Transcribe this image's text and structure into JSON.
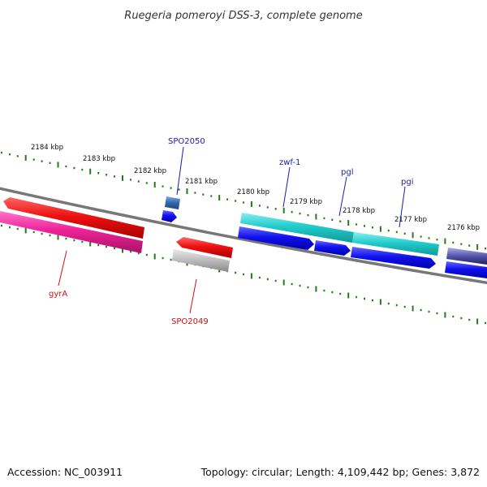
{
  "title": "Ruegeria pomeroyi DSS-3, complete genome",
  "footer": {
    "accession": "Accession: NC_003911",
    "summary": "Topology: circular; Length: 4,109,442 bp; Genes: 3,872"
  },
  "colors": {
    "backbone": "#777777",
    "ticks": "#2a7a1c",
    "forward_genes": "#1111ee",
    "reverse_genes": "#ee1111",
    "rrna": "#ff2299",
    "trna": "#33cccc",
    "other": "#bbbbbb",
    "forward_label": "#1a1aaa",
    "reverse_label": "#cc1111"
  },
  "kbp_ticks": [
    "2184 kbp",
    "2183 kbp",
    "2182 kbp",
    "2181 kbp",
    "2180 kbp",
    "2179 kbp",
    "2178 kbp",
    "2177 kbp",
    "2176 kbp"
  ],
  "gene_labels": {
    "forward": [
      "SPO2050",
      "zwf-1",
      "pgl",
      "pgi"
    ],
    "reverse": [
      "gyrA",
      "SPO2049"
    ]
  }
}
